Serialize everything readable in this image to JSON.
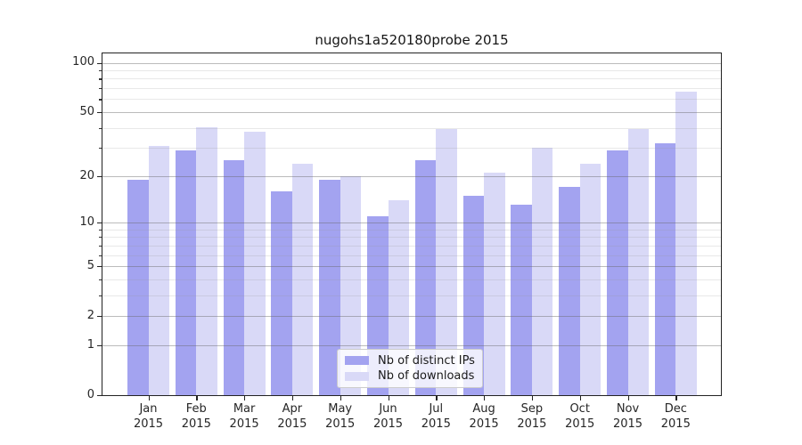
{
  "title": "nugohs1a520180probe 2015",
  "legend": {
    "items": [
      {
        "label": "Nb of distinct IPs",
        "color": "#a3a3f0"
      },
      {
        "label": "Nb of downloads",
        "color": "#d9d9f7"
      }
    ]
  },
  "chart_data": {
    "type": "bar",
    "title": "nugohs1a520180probe 2015",
    "categories": [
      "Jan",
      "Feb",
      "Mar",
      "Apr",
      "May",
      "Jun",
      "Jul",
      "Aug",
      "Sep",
      "Oct",
      "Nov",
      "Dec"
    ],
    "year_label": "2015",
    "series": [
      {
        "name": "Nb of distinct IPs",
        "color": "#a3a3f0",
        "values": [
          19,
          29,
          25,
          16,
          19,
          11,
          25,
          15,
          13,
          17,
          29,
          32
        ]
      },
      {
        "name": "Nb of downloads",
        "color": "#d9d9f7",
        "values": [
          31,
          40,
          38,
          24,
          20,
          14,
          39,
          21,
          30,
          24,
          39,
          67
        ]
      }
    ],
    "xlabel": "",
    "ylabel": "",
    "yscale": "log10(1+v)",
    "ylim": [
      0,
      117
    ],
    "y_major_ticks": [
      0,
      1,
      2,
      5,
      10,
      20,
      50,
      100
    ],
    "y_minor_ticks": [
      3,
      4,
      6,
      7,
      8,
      9,
      30,
      40,
      60,
      70,
      80,
      90
    ],
    "grid": true,
    "legend_position": "lower-center"
  }
}
